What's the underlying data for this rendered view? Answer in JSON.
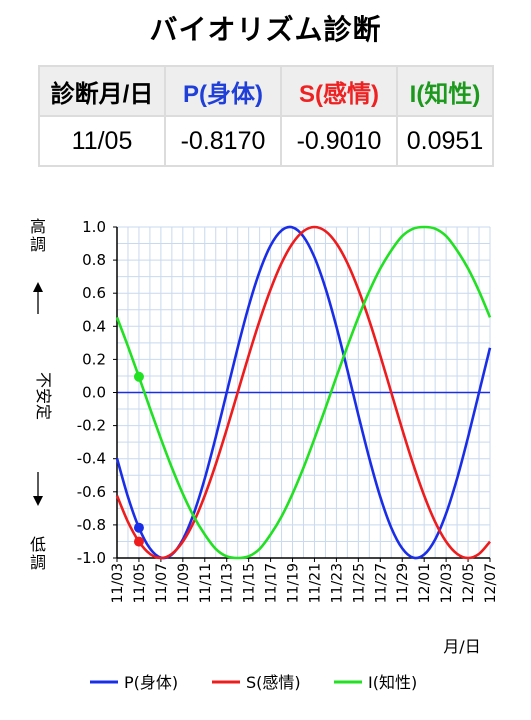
{
  "page_title": "バイオリズム診断",
  "table": {
    "headers": {
      "date": "診断月/日",
      "physical": "P(身体)",
      "sensitivity": "S(感情)",
      "intellectual": "I(知性)"
    },
    "row": {
      "date": "11/05",
      "physical": "-0.8170",
      "sensitivity": "-0.9010",
      "intellectual": "0.0951"
    }
  },
  "colors": {
    "physical": "#1a2ee8",
    "sensitivity": "#ee1c1c",
    "intellectual": "#22e022",
    "grid": "#c9d9ef",
    "plot_bg": "#ffffff"
  },
  "chart_data": {
    "type": "line",
    "title": "",
    "xlabel": "月/日",
    "ylabel_top": "高調",
    "ylabel_middle": "不安定",
    "ylabel_bottom": "低調",
    "ylim": [
      -1.0,
      1.0
    ],
    "yticks": [
      "1.0",
      "0.8",
      "0.6",
      "0.4",
      "0.2",
      "0.0",
      "-0.2",
      "-0.4",
      "-0.6",
      "-0.8",
      "-1.0"
    ],
    "xticks": [
      "11/03",
      "11/05",
      "11/07",
      "11/09",
      "11/11",
      "11/13",
      "11/15",
      "11/17",
      "11/19",
      "11/21",
      "11/23",
      "11/25",
      "11/27",
      "11/29",
      "12/01",
      "12/03",
      "12/05",
      "12/07"
    ],
    "x": [
      "11/03",
      "11/04",
      "11/05",
      "11/06",
      "11/07",
      "11/08",
      "11/09",
      "11/10",
      "11/11",
      "11/12",
      "11/13",
      "11/14",
      "11/15",
      "11/16",
      "11/17",
      "11/18",
      "11/19",
      "11/20",
      "11/21",
      "11/22",
      "11/23",
      "11/24",
      "11/25",
      "11/26",
      "11/27",
      "11/28",
      "11/29",
      "11/30",
      "12/01",
      "12/02",
      "12/03",
      "12/04",
      "12/05",
      "12/06",
      "12/07"
    ],
    "series": [
      {
        "name": "P(身体)",
        "values": [
          -0.398,
          -0.631,
          -0.817,
          -0.942,
          -0.998,
          -0.979,
          -0.888,
          -0.731,
          -0.52,
          -0.27,
          0.0,
          0.27,
          0.52,
          0.731,
          0.888,
          0.979,
          0.998,
          0.942,
          0.817,
          0.631,
          0.398,
          0.136,
          -0.136,
          -0.398,
          -0.631,
          -0.817,
          -0.942,
          -0.998,
          -0.979,
          -0.888,
          -0.731,
          -0.52,
          -0.27,
          0.0,
          0.27
        ]
      },
      {
        "name": "S(感情)",
        "values": [
          -0.623,
          -0.782,
          -0.901,
          -0.975,
          -1.0,
          -0.975,
          -0.901,
          -0.782,
          -0.623,
          -0.434,
          -0.223,
          0.0,
          0.223,
          0.434,
          0.623,
          0.782,
          0.901,
          0.975,
          1.0,
          0.975,
          0.901,
          0.782,
          0.623,
          0.434,
          0.223,
          0.0,
          -0.223,
          -0.434,
          -0.623,
          -0.782,
          -0.901,
          -0.975,
          -1.0,
          -0.975,
          -0.901
        ]
      },
      {
        "name": "I(知性)",
        "values": [
          0.454,
          0.279,
          0.0951,
          -0.095,
          -0.279,
          -0.454,
          -0.612,
          -0.749,
          -0.858,
          -0.945,
          -0.99,
          -1.0,
          -0.99,
          -0.945,
          -0.858,
          -0.749,
          -0.612,
          -0.454,
          -0.279,
          -0.095,
          0.095,
          0.279,
          0.454,
          0.612,
          0.749,
          0.858,
          0.945,
          0.99,
          1.0,
          0.99,
          0.945,
          0.858,
          0.749,
          0.612,
          0.454
        ]
      }
    ],
    "highlight": {
      "x": "11/05",
      "values": [
        -0.817,
        -0.901,
        0.0951
      ]
    },
    "legend_position": "bottom",
    "grid": true
  }
}
